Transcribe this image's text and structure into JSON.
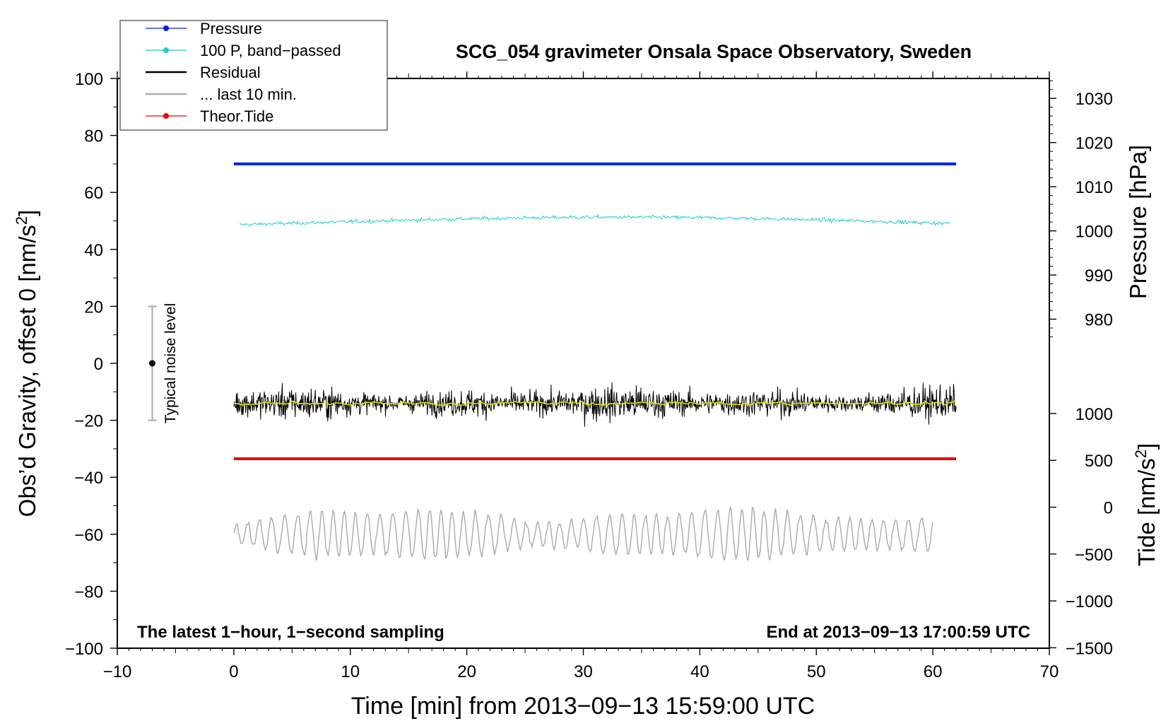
{
  "chart_data": {
    "type": "line",
    "title": "SCG_054 gravimeter Onsala Space Observatory, Sweden",
    "xlabel": "Time [min] from 2013−09−13 15:59:00 UTC",
    "ylabel_left": "Obs’d Gravity, offset 0 [nm/s",
    "ylabel_left_sup": "2",
    "ylabel_left_end": "]",
    "ylabel_right_pressure": "Pressure [hPa]",
    "ylabel_right_tide": "Tide [nm/s",
    "ylabel_right_tide_sup": "2",
    "ylabel_right_tide_end": "]",
    "xlim": [
      -10,
      70
    ],
    "ylim": [
      -100,
      100
    ],
    "x_ticks": [
      "−10",
      "0",
      "10",
      "20",
      "30",
      "40",
      "50",
      "60",
      "70"
    ],
    "x_tick_values": [
      -10,
      0,
      10,
      20,
      30,
      40,
      50,
      60,
      70
    ],
    "y_ticks": [
      "100",
      "80",
      "60",
      "40",
      "20",
      "0",
      "−20",
      "−40",
      "−60",
      "−80",
      "−100"
    ],
    "y_tick_values": [
      100,
      80,
      60,
      40,
      20,
      0,
      -20,
      -40,
      -60,
      -80,
      -100
    ],
    "pressure_axis": {
      "ticks": [
        "1030",
        "1020",
        "1010",
        "1000",
        "990",
        "980"
      ],
      "values": [
        1030,
        1020,
        1010,
        1000,
        990,
        980
      ],
      "gravity_at_1000": 46.5,
      "gravity_per_hpa": 1.55
    },
    "tide_axis": {
      "ticks": [
        "1000",
        "500",
        "0",
        "−500",
        "−1000",
        "−1500"
      ],
      "values": [
        1000,
        500,
        0,
        -500,
        -1000,
        -1500
      ],
      "gravity_at_0": -50.5,
      "gravity_per_unit": 0.0329
    },
    "series": [
      {
        "name": "Pressure",
        "color": "#0022ee",
        "x_range": [
          0,
          62
        ],
        "y": 70
      },
      {
        "name": "100 P, band−passed",
        "color": "#22cccc",
        "x_range": [
          0.5,
          61.5
        ],
        "y": 49.5
      },
      {
        "name": "Residual",
        "color": "#000000",
        "x_range": [
          0,
          62
        ],
        "y": -14,
        "smoothed_color": "#dddd00"
      },
      {
        "name": "... last 10 min.",
        "color": "#aaaaaa",
        "x_range": [
          0,
          60
        ],
        "y": -60
      },
      {
        "name": "Theor.Tide",
        "color": "#ee0000",
        "x_range": [
          0,
          62
        ],
        "y": -33.5
      }
    ],
    "noise_bar": {
      "label": "Typical noise level",
      "x": -7,
      "y": 0,
      "low": -20,
      "high": 20
    },
    "annotations": {
      "left": "The latest 1−hour, 1−second sampling",
      "right": "End at 2013−09−13 17:00:59 UTC"
    },
    "legend_position": "top-left"
  }
}
